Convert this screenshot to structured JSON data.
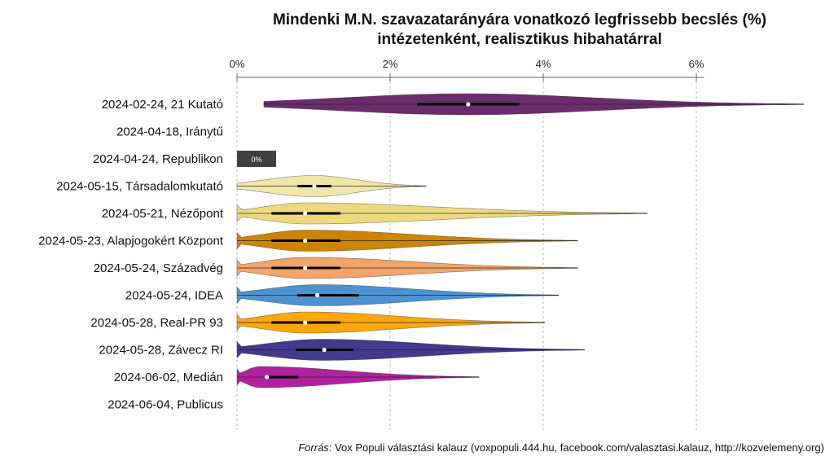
{
  "chart_data": {
    "type": "violin",
    "title": "Mindenki M.N. szavazatarányára vonatkozó legfrissebb becslés (%)",
    "subtitle": "intézetenként, realisztikus hibahatárral",
    "xlabel": "",
    "ylabel": "",
    "xlim": [
      0,
      7.5
    ],
    "x_ticks": [
      0,
      2,
      4,
      6
    ],
    "x_tick_labels": [
      "0%",
      "2%",
      "4%",
      "6%"
    ],
    "grid": true,
    "series": [
      {
        "label": "2024-02-24, 21 Kutató",
        "color": "#6b2c6e",
        "min": 0.35,
        "q1": 2.35,
        "median": 3.02,
        "q3": 3.69,
        "whisker": 6.0,
        "max": 7.4,
        "peak": 3.0
      },
      {
        "label": "2024-04-18, Iránytű",
        "color": null,
        "min": null,
        "q1": null,
        "median": null,
        "q3": null,
        "whisker": null,
        "max": null,
        "peak": null
      },
      {
        "label": "2024-04-24, Republikon",
        "color": "#404040",
        "value": 0,
        "zero_label": "0%"
      },
      {
        "label": "2024-05-15, Társadalomkutató",
        "color": "#efe7a9",
        "min": 0.0,
        "q1": 0.79,
        "median": 1.01,
        "q3": 1.23,
        "whisker": 2.2,
        "max": 2.47,
        "peak": 1.0
      },
      {
        "label": "2024-05-21, Nézőpont",
        "color": "#ecd97f",
        "min": 0.0,
        "q1": 0.45,
        "median": 0.89,
        "q3": 1.35,
        "whisker": 2.68,
        "max": 5.36,
        "peak": 0.9
      },
      {
        "label": "2024-05-23, Alapjogokért Központ",
        "color": "#cc8405",
        "min": 0.0,
        "q1": 0.45,
        "median": 0.89,
        "q3": 1.35,
        "whisker": 2.68,
        "max": 4.45,
        "peak": 0.9
      },
      {
        "label": "2024-05-24, Századvég",
        "color": "#f3a46a",
        "min": 0.0,
        "q1": 0.45,
        "median": 0.89,
        "q3": 1.35,
        "whisker": 2.68,
        "max": 4.45,
        "peak": 0.9
      },
      {
        "label": "2024-05-24, IDEA",
        "color": "#4e92d0",
        "min": 0.0,
        "q1": 0.79,
        "median": 1.05,
        "q3": 1.59,
        "whisker": 2.75,
        "max": 4.2,
        "peak": 1.05
      },
      {
        "label": "2024-05-28, Real-PR 93",
        "color": "#fca70c",
        "min": 0.0,
        "q1": 0.45,
        "median": 0.89,
        "q3": 1.35,
        "whisker": 2.68,
        "max": 4.02,
        "peak": 0.9
      },
      {
        "label": "2024-05-28, Závecz RI",
        "color": "#433a8c",
        "min": 0.0,
        "q1": 0.77,
        "median": 1.14,
        "q3": 1.52,
        "whisker": 2.65,
        "max": 4.54,
        "peak": 1.1
      },
      {
        "label": "2024-06-02, Medián",
        "color": "#b0229e",
        "min": 0.0,
        "q1": 0.39,
        "median": 0.39,
        "q3": 0.8,
        "whisker": 1.38,
        "max": 3.16,
        "peak": 0.3
      },
      {
        "label": "2024-06-04, Publicus",
        "color": null,
        "min": null,
        "q1": null,
        "median": null,
        "q3": null,
        "whisker": null,
        "max": null,
        "peak": null
      }
    ]
  },
  "source": {
    "prefix": "Forrás",
    "text": ": Vox Populi választási kalauz (voxpopuli.444.hu, facebook.com/valasztasi.kalauz, http://kozvelemeny.org)"
  }
}
